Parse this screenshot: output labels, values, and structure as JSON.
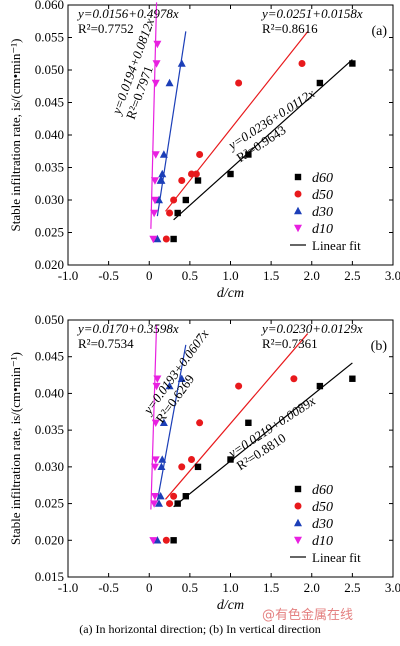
{
  "caption": "(a) In horizontal direction; (b) In vertical direction",
  "watermark": "@有色金属在线",
  "chart_data": [
    {
      "type": "scatter",
      "panel_label": "(a)",
      "xlabel": "d/cm",
      "ylabel": "Stable infiltration rate, is/(cm•min⁻¹)",
      "xlim": [
        -1.0,
        3.0
      ],
      "ylim": [
        0.02,
        0.06
      ],
      "xticks": [
        "-1.0",
        "-0.5",
        "0",
        "0.5",
        "1.0",
        "1.5",
        "2.0",
        "2.5",
        "3.0"
      ],
      "yticks": [
        "0.020",
        "0.025",
        "0.030",
        "0.035",
        "0.040",
        "0.045",
        "0.050",
        "0.055",
        "0.060"
      ],
      "legend_position": "bottom-right",
      "grid": false,
      "series": [
        {
          "name": "d60",
          "marker": "square",
          "color": "#000000",
          "x": [
            0.3,
            0.35,
            0.45,
            0.6,
            1.0,
            1.22,
            2.1,
            2.5
          ],
          "y": [
            0.024,
            0.028,
            0.03,
            0.033,
            0.034,
            0.037,
            0.048,
            0.051
          ],
          "fit": {
            "intercept": 0.0236,
            "slope": 0.0112,
            "x": [
              0.3,
              2.5
            ]
          }
        },
        {
          "name": "d50",
          "marker": "circle",
          "color": "#e8191c",
          "x": [
            0.21,
            0.25,
            0.3,
            0.4,
            0.52,
            0.58,
            0.62,
            1.1,
            1.88
          ],
          "y": [
            0.024,
            0.028,
            0.03,
            0.033,
            0.034,
            0.034,
            0.037,
            0.048,
            0.051
          ],
          "fit": {
            "intercept": 0.0251,
            "slope": 0.0158,
            "x": [
              0.2,
              1.95
            ]
          }
        },
        {
          "name": "d30",
          "marker": "triangle",
          "color": "#1c3fb8",
          "x": [
            0.1,
            0.12,
            0.14,
            0.15,
            0.16,
            0.18,
            0.25,
            0.4
          ],
          "y": [
            0.024,
            0.03,
            0.033,
            0.033,
            0.034,
            0.037,
            0.048,
            0.051
          ],
          "fit": {
            "intercept": 0.0194,
            "slope": 0.0812,
            "x": [
              0.1,
              0.45
            ]
          }
        },
        {
          "name": "d10",
          "marker": "triangle-down",
          "color": "#e820e0",
          "x": [
            0.05,
            0.06,
            0.07,
            0.07,
            0.08,
            0.08,
            0.09,
            0.1
          ],
          "y": [
            0.024,
            0.028,
            0.03,
            0.033,
            0.037,
            0.048,
            0.051,
            0.054
          ],
          "fit": {
            "intercept": 0.0156,
            "slope": 0.4978,
            "x": [
              0.02,
              0.09
            ]
          }
        }
      ],
      "linear_fit_label": "Linear fit",
      "annotations": [
        {
          "eq": "y=0.0156+0.4978x",
          "r2": "R²=0.7752",
          "color": "#000000"
        },
        {
          "eq": "y=0.0194+0.0812x",
          "r2": "R²=0.7971",
          "color": "#000000"
        },
        {
          "eq": "y=0.0251+0.0158x",
          "r2": "R²=0.8616",
          "color": "#000000"
        },
        {
          "eq": "y=0.0236+0.0112x",
          "r2": "R²=0.9643",
          "color": "#000000"
        }
      ]
    },
    {
      "type": "scatter",
      "panel_label": "(b)",
      "xlabel": "d/cm",
      "ylabel": "Stable infiltration rate, is/(cm•min⁻¹)",
      "xlim": [
        -1.0,
        3.0
      ],
      "ylim": [
        0.015,
        0.05
      ],
      "xticks": [
        "-1.0",
        "-0.5",
        "0",
        "0.5",
        "1.0",
        "1.5",
        "2.0",
        "2.5",
        "3.0"
      ],
      "yticks": [
        "0.015",
        "0.020",
        "0.025",
        "0.030",
        "0.035",
        "0.040",
        "0.045",
        "0.050"
      ],
      "legend_position": "bottom-right",
      "grid": false,
      "series": [
        {
          "name": "d60",
          "marker": "square",
          "color": "#000000",
          "x": [
            0.3,
            0.35,
            0.45,
            0.6,
            1.0,
            1.22,
            2.1,
            2.5
          ],
          "y": [
            0.02,
            0.025,
            0.026,
            0.03,
            0.031,
            0.036,
            0.041,
            0.042
          ],
          "fit": {
            "intercept": 0.0219,
            "slope": 0.0089,
            "x": [
              0.3,
              2.5
            ]
          }
        },
        {
          "name": "d50",
          "marker": "circle",
          "color": "#e8191c",
          "x": [
            0.21,
            0.25,
            0.3,
            0.4,
            0.52,
            0.62,
            1.1,
            1.78
          ],
          "y": [
            0.02,
            0.025,
            0.026,
            0.03,
            0.031,
            0.036,
            0.041,
            0.042
          ],
          "fit": {
            "intercept": 0.023,
            "slope": 0.0129,
            "x": [
              0.2,
              1.95
            ]
          }
        },
        {
          "name": "d30",
          "marker": "triangle",
          "color": "#1c3fb8",
          "x": [
            0.1,
            0.12,
            0.14,
            0.15,
            0.16,
            0.18,
            0.25,
            0.4
          ],
          "y": [
            0.02,
            0.025,
            0.026,
            0.03,
            0.031,
            0.036,
            0.041,
            0.042
          ],
          "fit": {
            "intercept": 0.0193,
            "slope": 0.0607,
            "x": [
              0.1,
              0.45
            ]
          }
        },
        {
          "name": "d10",
          "marker": "triangle-down",
          "color": "#e820e0",
          "x": [
            0.05,
            0.06,
            0.07,
            0.07,
            0.08,
            0.08,
            0.09,
            0.1
          ],
          "y": [
            0.02,
            0.025,
            0.026,
            0.03,
            0.031,
            0.036,
            0.041,
            0.042
          ],
          "fit": {
            "intercept": 0.017,
            "slope": 0.3598,
            "x": [
              0.02,
              0.09
            ]
          }
        }
      ],
      "linear_fit_label": "Linear fit",
      "annotations": [
        {
          "eq": "y=0.0170+0.3598x",
          "r2": "R²=0.7534",
          "color": "#000000"
        },
        {
          "eq": "y=0.0193+0.0607x",
          "r2": "R²=0.6269",
          "color": "#000000"
        },
        {
          "eq": "y=0.0230+0.0129x",
          "r2": "R²=0.7361",
          "color": "#000000"
        },
        {
          "eq": "y=0.0219+0.0089x",
          "r2": "R²=0.8810",
          "color": "#000000"
        }
      ]
    }
  ]
}
